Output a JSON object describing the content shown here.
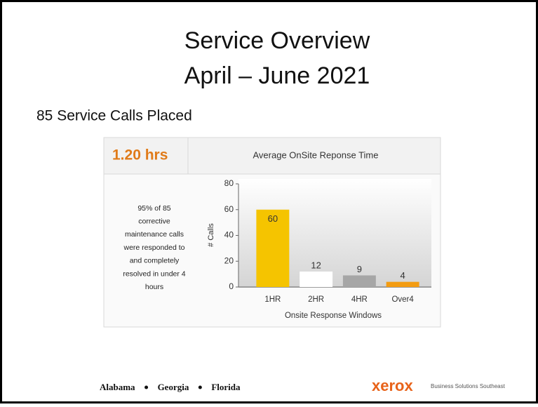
{
  "slide": {
    "title_lines": [
      "Service Overview",
      "April – June 2021"
    ],
    "subtitle": "85 Service Calls Placed",
    "footer_states": [
      "Alabama",
      "Georgia",
      "Florida"
    ],
    "logo": "xerox",
    "logo_tagline": "Business Solutions Southeast"
  },
  "panel": {
    "kpi": "1.20 hrs",
    "kpi_caption": "Average OnSite Reponse Time",
    "note_lines": [
      "95% of 85",
      "corrective",
      "maintenance calls",
      "were responded to",
      "and completely",
      "resolved in under 4",
      "hours"
    ]
  },
  "chart_data": {
    "type": "bar",
    "categories": [
      "1HR",
      "2HR",
      "4HR",
      "Over4"
    ],
    "values": [
      60,
      12,
      9,
      4
    ],
    "colors": [
      "#f5c400",
      "#ffffff",
      "#a6a6a6",
      "#f39c12"
    ],
    "x_label": "Onsite Response Windows",
    "y_label": "# Calls",
    "ylim": [
      0,
      80
    ],
    "yticks": [
      0,
      20,
      40,
      60,
      80
    ]
  }
}
